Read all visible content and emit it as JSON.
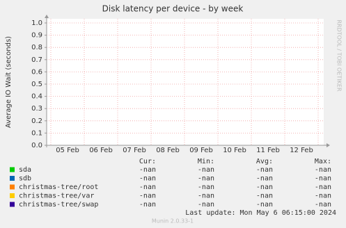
{
  "chart_data": {
    "type": "line",
    "title": "Disk latency per device - by week",
    "y_label": "Average IO Wait (seconds)",
    "side_label": "RRDTOOL / TOBI OETIKER",
    "categories": [
      "05 Feb",
      "06 Feb",
      "07 Feb",
      "08 Feb",
      "09 Feb",
      "10 Feb",
      "11 Feb",
      "12 Feb"
    ],
    "ylim": [
      0,
      1
    ],
    "yticks": [
      {
        "value": 0,
        "label": "0.0"
      },
      0.1,
      0.2,
      0.3,
      0.4,
      0.5,
      0.6,
      0.7,
      0.8,
      0.9,
      {
        "value": 1,
        "label": "1.0"
      }
    ],
    "grid": true,
    "legend_columns": [
      "Cur:",
      "Min:",
      "Avg:",
      "Max:"
    ],
    "series": [
      {
        "name": "sda",
        "color": "#00cc00",
        "stats": [
          "-nan",
          "-nan",
          "-nan",
          "-nan"
        ]
      },
      {
        "name": "sdb",
        "color": "#0066b3",
        "stats": [
          "-nan",
          "-nan",
          "-nan",
          "-nan"
        ]
      },
      {
        "name": "christmas-tree/root",
        "color": "#ff8000",
        "stats": [
          "-nan",
          "-nan",
          "-nan",
          "-nan"
        ]
      },
      {
        "name": "christmas-tree/var",
        "color": "#ffcc00",
        "stats": [
          "-nan",
          "-nan",
          "-nan",
          "-nan"
        ]
      },
      {
        "name": "christmas-tree/swap",
        "color": "#330099",
        "stats": [
          "-nan",
          "-nan",
          "-nan",
          "-nan"
        ]
      }
    ],
    "last_update": "Last update:  Mon May  6 06:15:00 2024",
    "footer": "Munin 2.0.33-1"
  }
}
